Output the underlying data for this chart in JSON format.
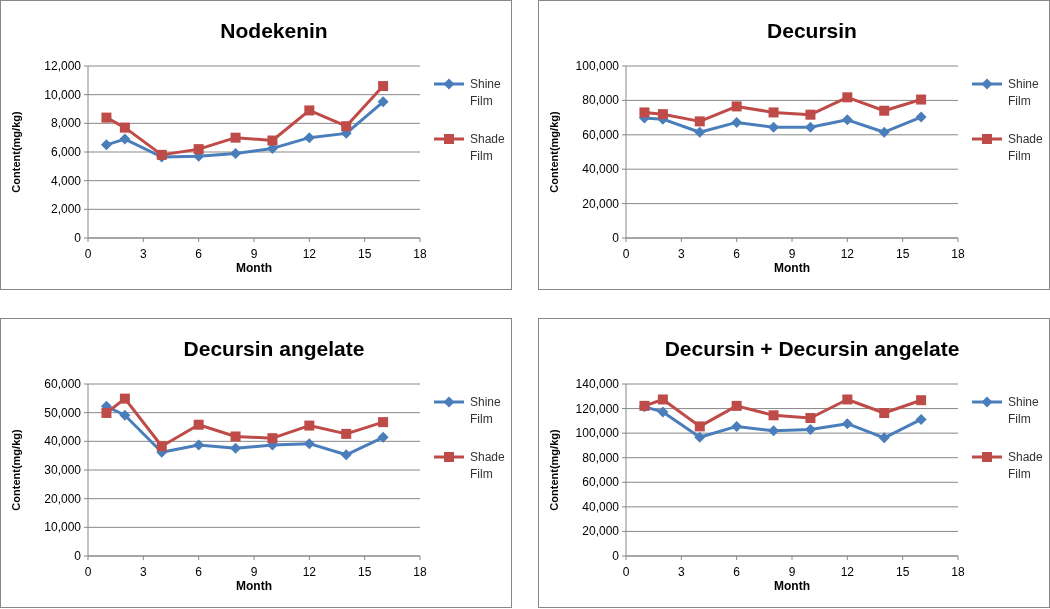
{
  "chart_data": [
    {
      "type": "line",
      "title": "Nodekenin",
      "xlabel": "Month",
      "ylabel": "Content(mg/kg)",
      "x": [
        1,
        2,
        4,
        6,
        8,
        10,
        12,
        14,
        16
      ],
      "xlim": [
        0,
        18
      ],
      "xticks": [
        0,
        3,
        6,
        9,
        12,
        15,
        18
      ],
      "ylim": [
        0,
        12000
      ],
      "yticks": [
        {
          "value": 0,
          "label": "0"
        },
        {
          "value": 2000,
          "label": "2,000"
        },
        {
          "value": 4000,
          "label": "4,000"
        },
        {
          "value": 6000,
          "label": "6,000"
        },
        {
          "value": 8000,
          "label": "8,000"
        },
        {
          "value": 10000,
          "label": "10,000"
        },
        {
          "value": 12000,
          "label": "12,000"
        }
      ],
      "grid": "y",
      "legend": "right",
      "series": [
        {
          "name": "Shine Film",
          "color": "#4a7ebb",
          "marker": "diamond",
          "values": [
            6500,
            6900,
            5650,
            5700,
            5900,
            6250,
            7000,
            7300,
            9500
          ]
        },
        {
          "name": "Shade Film",
          "color": "#be4b48",
          "marker": "square",
          "values": [
            8400,
            7700,
            5800,
            6200,
            7000,
            6800,
            8900,
            7800,
            10600
          ]
        }
      ]
    },
    {
      "type": "line",
      "title": "Decursin",
      "xlabel": "Month",
      "ylabel": "Content(mg/kg)",
      "x": [
        1,
        2,
        4,
        6,
        8,
        10,
        12,
        14,
        16
      ],
      "xlim": [
        0,
        18
      ],
      "xticks": [
        0,
        3,
        6,
        9,
        12,
        15,
        18
      ],
      "ylim": [
        0,
        100000
      ],
      "yticks": [
        {
          "value": 0,
          "label": "0"
        },
        {
          "value": 20000,
          "label": "20,000"
        },
        {
          "value": 40000,
          "label": "40,000"
        },
        {
          "value": 60000,
          "label": "60,000"
        },
        {
          "value": 80000,
          "label": "80,000"
        },
        {
          "value": 100000,
          "label": "100,000"
        }
      ],
      "grid": "y",
      "legend": "right",
      "series": [
        {
          "name": "Shine Film",
          "color": "#4a7ebb",
          "marker": "diamond",
          "values": [
            69700,
            69100,
            61500,
            67200,
            64400,
            64400,
            68700,
            61500,
            70300
          ]
        },
        {
          "name": "Shade Film",
          "color": "#be4b48",
          "marker": "square",
          "values": [
            73000,
            72000,
            67800,
            76500,
            73000,
            71700,
            81800,
            74000,
            80500
          ]
        }
      ]
    },
    {
      "type": "line",
      "title": "Decursin angelate",
      "xlabel": "Month",
      "ylabel": "Content(mg/kg)",
      "x": [
        1,
        2,
        4,
        6,
        8,
        10,
        12,
        14,
        16
      ],
      "xlim": [
        0,
        18
      ],
      "xticks": [
        0,
        3,
        6,
        9,
        12,
        15,
        18
      ],
      "ylim": [
        0,
        60000
      ],
      "yticks": [
        {
          "value": 0,
          "label": "0"
        },
        {
          "value": 10000,
          "label": "10,000"
        },
        {
          "value": 20000,
          "label": "20,000"
        },
        {
          "value": 30000,
          "label": "30,000"
        },
        {
          "value": 40000,
          "label": "40,000"
        },
        {
          "value": 50000,
          "label": "50,000"
        },
        {
          "value": 60000,
          "label": "60,000"
        }
      ],
      "grid": "y",
      "legend": "right",
      "series": [
        {
          "name": "Shine Film",
          "color": "#4a7ebb",
          "marker": "diamond",
          "values": [
            52200,
            49100,
            36200,
            38700,
            37600,
            38700,
            39200,
            35300,
            41400
          ]
        },
        {
          "name": "Shade Film",
          "color": "#be4b48",
          "marker": "square",
          "values": [
            49900,
            54900,
            38300,
            45800,
            41700,
            41100,
            45500,
            42600,
            46700
          ]
        }
      ]
    },
    {
      "type": "line",
      "title": "Decursin + Decursin angelate",
      "xlabel": "Month",
      "ylabel": "Content(mg/kg)",
      "x": [
        1,
        2,
        4,
        6,
        8,
        10,
        12,
        14,
        16
      ],
      "xlim": [
        0,
        18
      ],
      "xticks": [
        0,
        3,
        6,
        9,
        12,
        15,
        18
      ],
      "ylim": [
        0,
        140000
      ],
      "yticks": [
        {
          "value": 0,
          "label": "0"
        },
        {
          "value": 20000,
          "label": "20,000"
        },
        {
          "value": 40000,
          "label": "40,000"
        },
        {
          "value": 60000,
          "label": "60,000"
        },
        {
          "value": 80000,
          "label": "80,000"
        },
        {
          "value": 100000,
          "label": "100,000"
        },
        {
          "value": 120000,
          "label": "120,000"
        },
        {
          "value": 140000,
          "label": "140,000"
        }
      ],
      "grid": "y",
      "legend": "right",
      "series": [
        {
          "name": "Shine Film",
          "color": "#4a7ebb",
          "marker": "diamond",
          "values": [
            121400,
            117300,
            96700,
            105500,
            101900,
            103000,
            107700,
            96200,
            111200
          ]
        },
        {
          "name": "Shade Film",
          "color": "#be4b48",
          "marker": "square",
          "values": [
            122200,
            127400,
            105500,
            122200,
            114500,
            112300,
            127400,
            116400,
            126800
          ]
        }
      ]
    }
  ]
}
